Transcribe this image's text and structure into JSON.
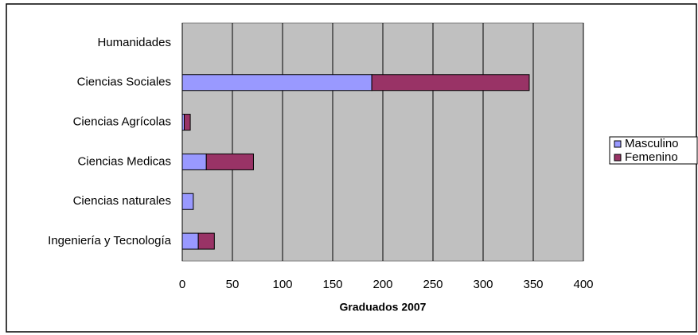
{
  "chart_data": {
    "type": "bar",
    "orientation": "horizontal",
    "stacked": true,
    "x_label": "Graduados 2007",
    "categories": [
      "Humanidades",
      "Ciencias Sociales",
      "Ciencias Agrícolas",
      "Ciencias Medicas",
      "Ciencias naturales",
      "Ingeniería y Tecnología"
    ],
    "series": [
      {
        "name": "Masculino",
        "color": "#9999ff",
        "values": [
          0,
          189,
          2,
          24,
          11,
          16
        ]
      },
      {
        "name": "Femenino",
        "color": "#993366",
        "values": [
          0,
          157,
          6,
          47,
          0,
          16
        ]
      }
    ],
    "xlim": [
      0,
      400
    ],
    "xticks": [
      0,
      50,
      100,
      150,
      200,
      250,
      300,
      350,
      400
    ],
    "grid": true,
    "legend": "right"
  }
}
